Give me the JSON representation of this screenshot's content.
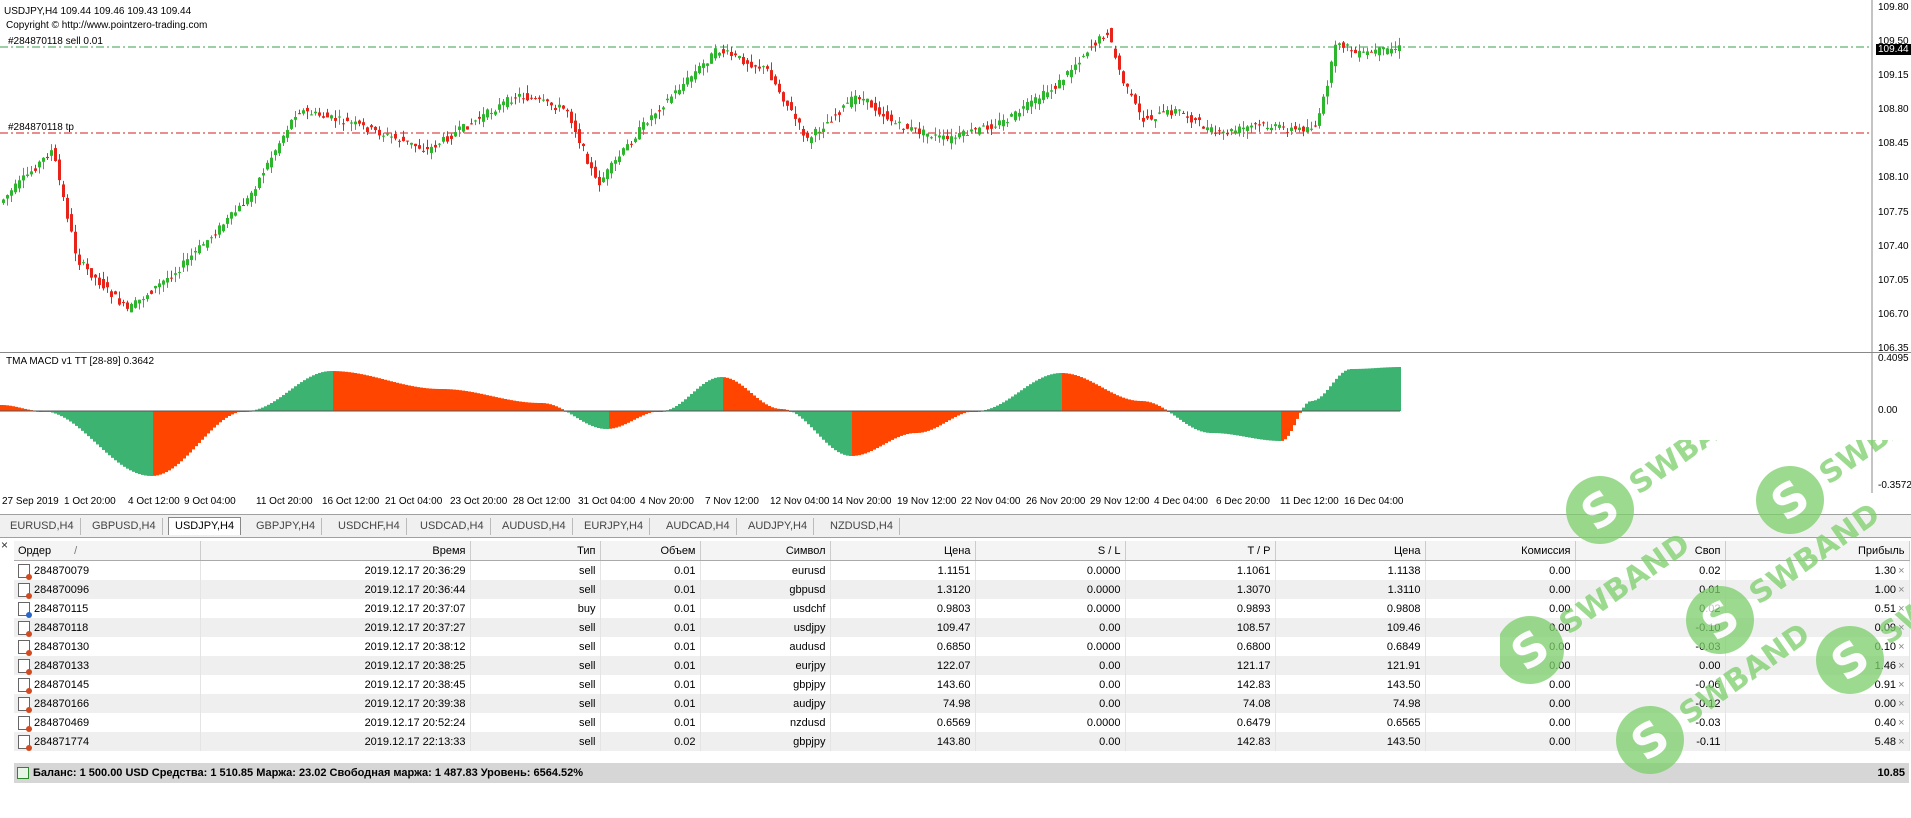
{
  "chart": {
    "symbol_line": "USDJPY,H4  109.44 109.46 109.43 109.44",
    "copyright": "Copyright © http://www.pointzero-trading.com",
    "order_line_label": "#284870118 sell 0.01",
    "tp_line_label": "#284870118 tp",
    "current_price": "109.44",
    "price_ticks": [
      "109.80",
      "109.50",
      "109.15",
      "108.80",
      "108.45",
      "108.10",
      "107.75",
      "107.40",
      "107.05",
      "106.70",
      "106.35"
    ],
    "time_ticks": [
      "27 Sep 2019",
      "1 Oct 20:00",
      "4 Oct 12:00",
      "9 Oct 04:00",
      "11 Oct 20:00",
      "16 Oct 12:00",
      "21 Oct 04:00",
      "23 Oct 20:00",
      "28 Oct 12:00",
      "31 Oct 04:00",
      "4 Nov 20:00",
      "7 Nov 12:00",
      "12 Nov 04:00",
      "14 Nov 20:00",
      "19 Nov 12:00",
      "22 Nov 04:00",
      "26 Nov 20:00",
      "29 Nov 12:00",
      "4 Dec 04:00",
      "6 Dec 20:00",
      "11 Dec 12:00",
      "16 Dec 04:00"
    ],
    "colors": {
      "bull": "#2db52d",
      "bear": "#e8231a",
      "order_line": "#3aa14a",
      "tp_line": "#d21c1c"
    }
  },
  "indicator": {
    "label": "TMA MACD v1 TT [28-89] 0.3642",
    "ticks": [
      "0.4095",
      "0.00",
      "-0.3572"
    ],
    "colors": {
      "positive": "#3cb371",
      "negative": "#ff4500"
    }
  },
  "tabs": [
    "EURUSD,H4",
    "GBPUSD,H4",
    "USDJPY,H4",
    "GBPJPY,H4",
    "USDCHF,H4",
    "USDCAD,H4",
    "AUDUSD,H4",
    "EURJPY,H4",
    "AUDCAD,H4",
    "AUDJPY,H4",
    "NZDUSD,H4"
  ],
  "active_tab": "USDJPY,H4",
  "terminal": {
    "close_glyph": "×",
    "headers": {
      "order": "Ордер",
      "sort": "/",
      "time": "Время",
      "type": "Тип",
      "volume": "Объем",
      "symbol": "Символ",
      "price": "Цена",
      "sl": "S / L",
      "tp": "T / P",
      "cur_price": "Цена",
      "commission": "Комиссия",
      "swap": "Своп",
      "profit": "Прибыль"
    },
    "rows": [
      {
        "order": "284870079",
        "time": "2019.12.17 20:36:29",
        "type": "sell",
        "volume": "0.01",
        "symbol": "eurusd",
        "price": "1.1151",
        "sl": "0.0000",
        "tp": "1.1061",
        "cur_price": "1.1138",
        "commission": "0.00",
        "swap": "0.02",
        "profit": "1.30"
      },
      {
        "order": "284870096",
        "time": "2019.12.17 20:36:44",
        "type": "sell",
        "volume": "0.01",
        "symbol": "gbpusd",
        "price": "1.3120",
        "sl": "0.0000",
        "tp": "1.3070",
        "cur_price": "1.3110",
        "commission": "0.00",
        "swap": "0.01",
        "profit": "1.00"
      },
      {
        "order": "284870115",
        "time": "2019.12.17 20:37:07",
        "type": "buy",
        "volume": "0.01",
        "symbol": "usdchf",
        "price": "0.9803",
        "sl": "0.0000",
        "tp": "0.9893",
        "cur_price": "0.9808",
        "commission": "0.00",
        "swap": "0.02",
        "profit": "0.51"
      },
      {
        "order": "284870118",
        "time": "2019.12.17 20:37:27",
        "type": "sell",
        "volume": "0.01",
        "symbol": "usdjpy",
        "price": "109.47",
        "sl": "0.00",
        "tp": "108.57",
        "cur_price": "109.46",
        "commission": "0.00",
        "swap": "-0.10",
        "profit": "0.09"
      },
      {
        "order": "284870130",
        "time": "2019.12.17 20:38:12",
        "type": "sell",
        "volume": "0.01",
        "symbol": "audusd",
        "price": "0.6850",
        "sl": "0.0000",
        "tp": "0.6800",
        "cur_price": "0.6849",
        "commission": "0.00",
        "swap": "-0.03",
        "profit": "0.10"
      },
      {
        "order": "284870133",
        "time": "2019.12.17 20:38:25",
        "type": "sell",
        "volume": "0.01",
        "symbol": "eurjpy",
        "price": "122.07",
        "sl": "0.00",
        "tp": "121.17",
        "cur_price": "121.91",
        "commission": "0.00",
        "swap": "0.00",
        "profit": "1.46"
      },
      {
        "order": "284870145",
        "time": "2019.12.17 20:38:45",
        "type": "sell",
        "volume": "0.01",
        "symbol": "gbpjpy",
        "price": "143.60",
        "sl": "0.00",
        "tp": "142.83",
        "cur_price": "143.50",
        "commission": "0.00",
        "swap": "-0.06",
        "profit": "0.91"
      },
      {
        "order": "284870166",
        "time": "2019.12.17 20:39:38",
        "type": "sell",
        "volume": "0.01",
        "symbol": "audjpy",
        "price": "74.98",
        "sl": "0.00",
        "tp": "74.08",
        "cur_price": "74.98",
        "commission": "0.00",
        "swap": "-0.12",
        "profit": "0.00"
      },
      {
        "order": "284870469",
        "time": "2019.12.17 20:52:24",
        "type": "sell",
        "volume": "0.01",
        "symbol": "nzdusd",
        "price": "0.6569",
        "sl": "0.0000",
        "tp": "0.6479",
        "cur_price": "0.6565",
        "commission": "0.00",
        "swap": "-0.03",
        "profit": "0.40"
      },
      {
        "order": "284871774",
        "time": "2019.12.17 22:13:33",
        "type": "sell",
        "volume": "0.02",
        "symbol": "gbpjpy",
        "price": "143.80",
        "sl": "0.00",
        "tp": "142.83",
        "cur_price": "143.50",
        "commission": "0.00",
        "swap": "-0.11",
        "profit": "5.48"
      }
    ],
    "balance_text": "Баланс: 1 500.00 USD  Средства: 1 510.85  Маржа: 23.02  Свободная маржа: 1 487.83  Уровень: 6564.52%",
    "total_profit": "10.85",
    "row_close_glyph": "×"
  },
  "watermark": {
    "text": "SWBAND",
    "color": "#7ccf6a"
  }
}
